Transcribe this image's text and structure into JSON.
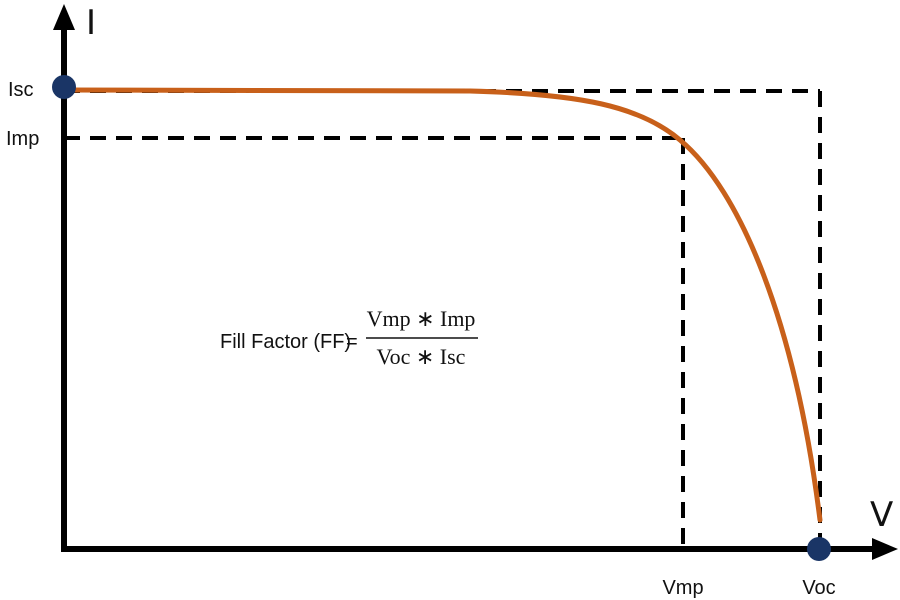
{
  "axes": {
    "y_label": "I",
    "x_label": "V"
  },
  "points": {
    "isc": "Isc",
    "imp": "Imp",
    "vmp": "Vmp",
    "voc": "Voc"
  },
  "formula": {
    "label": "Fill Factor (FF)",
    "equals": "=",
    "numerator": "Vmp ∗ Imp",
    "denominator": "Voc ∗ Isc"
  },
  "colors": {
    "curve": "#c8601a",
    "axis": "#000000",
    "dashed": "#000000",
    "marker": "#1a3566"
  }
}
